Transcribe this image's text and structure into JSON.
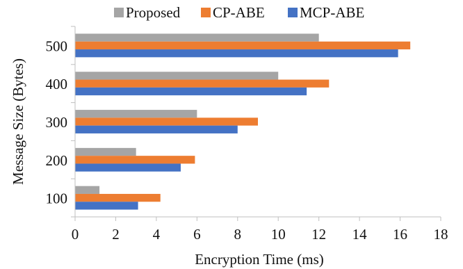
{
  "chart_data": {
    "type": "bar",
    "orientation": "horizontal",
    "categories": [
      "100",
      "200",
      "300",
      "400",
      "500"
    ],
    "series": [
      {
        "name": "Proposed",
        "color": "#A5A5A5",
        "values": [
          1.2,
          3.0,
          6.0,
          10.0,
          12.0
        ]
      },
      {
        "name": "CP-ABE",
        "color": "#ED7D31",
        "values": [
          4.2,
          5.9,
          9.0,
          12.5,
          16.5
        ]
      },
      {
        "name": "MCP-ABE",
        "color": "#4472C4",
        "values": [
          3.1,
          5.2,
          8.0,
          11.4,
          15.9
        ]
      }
    ],
    "xlabel": "Encryption Time (ms)",
    "ylabel": "Message  Size (Bytes)",
    "xlim": [
      0,
      18
    ],
    "xticks": [
      "0",
      "2",
      "4",
      "6",
      "8",
      "10",
      "12",
      "14",
      "16",
      "18"
    ],
    "grid": false,
    "legend_position": "top"
  }
}
